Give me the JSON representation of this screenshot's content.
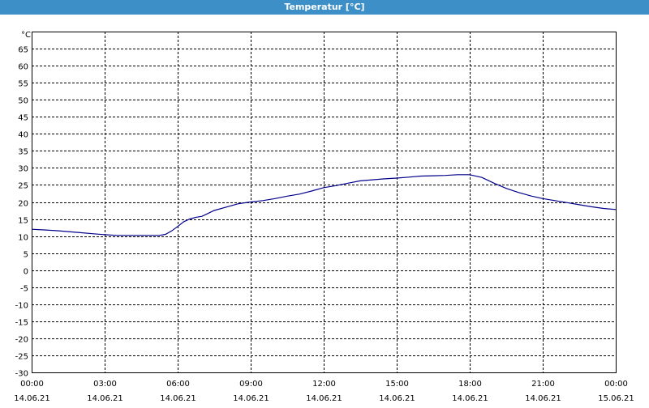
{
  "window": {
    "title": "Temperatur [°C]"
  },
  "colors": {
    "titlebar": "#3d8fc8",
    "line": "#00008b",
    "grid": "#000000"
  },
  "chart_data": {
    "type": "line",
    "ylabel": "°C",
    "ylim": [
      -30,
      70
    ],
    "yticks": [
      65,
      60,
      55,
      50,
      45,
      40,
      35,
      30,
      25,
      20,
      15,
      10,
      5,
      0,
      -5,
      -10,
      -15,
      -20,
      -25,
      -30
    ],
    "xlim_hours": [
      0,
      24
    ],
    "xtick_times": [
      "00:00",
      "03:00",
      "06:00",
      "09:00",
      "12:00",
      "15:00",
      "18:00",
      "21:00",
      "00:00"
    ],
    "xtick_dates": [
      "14.06.21",
      "14.06.21",
      "14.06.21",
      "14.06.21",
      "14.06.21",
      "14.06.21",
      "14.06.21",
      "14.06.21",
      "15.06.21"
    ],
    "grid": true,
    "series": [
      {
        "x_hours": [
          0,
          0.5,
          1,
          1.5,
          2,
          2.5,
          3,
          3.5,
          4,
          4.5,
          5,
          5.25,
          5.5,
          5.75,
          6,
          6.25,
          6.5,
          6.75,
          7,
          7.5,
          8,
          8.5,
          9,
          9.5,
          10,
          10.5,
          11,
          11.5,
          12,
          12.5,
          13,
          13.5,
          14,
          14.5,
          15,
          15.5,
          16,
          16.5,
          17,
          17.5,
          18,
          18.5,
          19,
          19.5,
          20,
          20.5,
          21,
          21.5,
          22,
          22.5,
          23,
          23.5,
          24
        ],
        "values": [
          12,
          11.8,
          11.6,
          11.3,
          11,
          10.7,
          10.4,
          10.2,
          10.2,
          10.2,
          10.2,
          10.2,
          10.5,
          11.5,
          12.8,
          14.2,
          15,
          15.5,
          15.8,
          17.5,
          18.5,
          19.5,
          20,
          20.4,
          21,
          21.7,
          22.3,
          23.2,
          24.2,
          24.8,
          25.5,
          26.2,
          26.5,
          26.8,
          27,
          27.3,
          27.6,
          27.7,
          27.8,
          28,
          28,
          27.2,
          25.5,
          24,
          22.8,
          21.8,
          21,
          20.4,
          19.8,
          19.2,
          18.6,
          18.1,
          17.8
        ]
      }
    ]
  }
}
